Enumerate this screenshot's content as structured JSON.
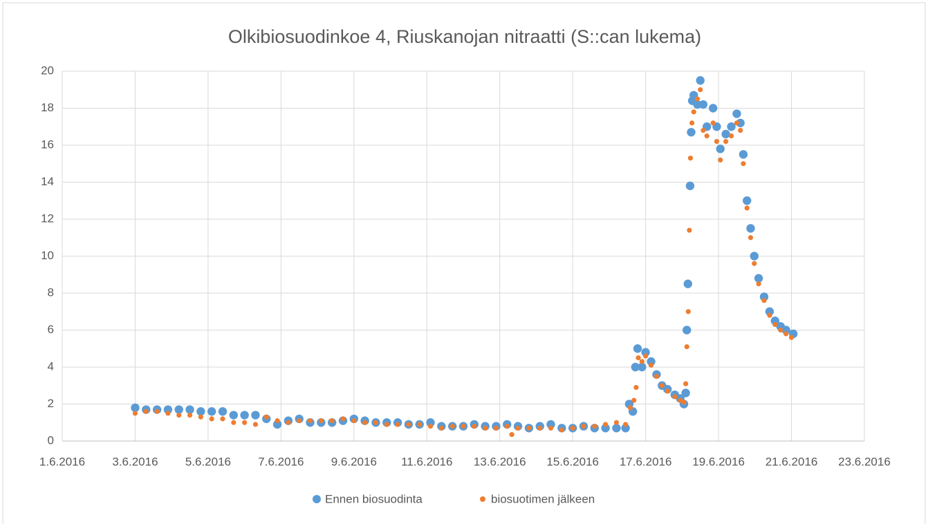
{
  "chart_data": {
    "type": "scatter",
    "title": "Olkibiosuodinkoe  4, Riuskanojan nitraatti (S::can lukema)",
    "xlim": [
      42522,
      42544
    ],
    "xticks": [
      {
        "value": 42522,
        "label": "1.6.2016"
      },
      {
        "value": 42524,
        "label": "3.6.2016"
      },
      {
        "value": 42526,
        "label": "5.6.2016"
      },
      {
        "value": 42528,
        "label": "7.6.2016"
      },
      {
        "value": 42530,
        "label": "9.6.2016"
      },
      {
        "value": 42532,
        "label": "11.6.2016"
      },
      {
        "value": 42534,
        "label": "13.6.2016"
      },
      {
        "value": 42536,
        "label": "15.6.2016"
      },
      {
        "value": 42538,
        "label": "17.6.2016"
      },
      {
        "value": 42540,
        "label": "19.6.2016"
      },
      {
        "value": 42542,
        "label": "21.6.2016"
      },
      {
        "value": 42544,
        "label": "23.6.2016"
      }
    ],
    "ylim": [
      0,
      20
    ],
    "yticks": [
      0,
      2,
      4,
      6,
      8,
      10,
      12,
      14,
      16,
      18,
      20
    ],
    "grid": true,
    "legend": "bottom",
    "series": [
      {
        "name": "Ennen biosuodinta",
        "color": "#5b9bd5",
        "x": [
          42524.0,
          42524.3,
          42524.6,
          42524.9,
          42525.2,
          42525.5,
          42525.8,
          42526.1,
          42526.4,
          42526.7,
          42527.0,
          42527.3,
          42527.6,
          42527.9,
          42528.2,
          42528.5,
          42528.8,
          42529.1,
          42529.4,
          42529.7,
          42530.0,
          42530.3,
          42530.6,
          42530.9,
          42531.2,
          42531.5,
          42531.8,
          42532.1,
          42532.4,
          42532.7,
          42533.0,
          42533.3,
          42533.6,
          42533.9,
          42534.2,
          42534.5,
          42534.8,
          42535.1,
          42535.4,
          42535.7,
          42536.0,
          42536.3,
          42536.6,
          42536.9,
          42537.2,
          42537.45,
          42537.55,
          42537.65,
          42537.72,
          42537.78,
          42537.9,
          42538.0,
          42538.15,
          42538.3,
          42538.45,
          42538.6,
          42538.8,
          42538.95,
          42539.05,
          42539.1,
          42539.13,
          42539.16,
          42539.22,
          42539.25,
          42539.28,
          42539.32,
          42539.42,
          42539.5,
          42539.58,
          42539.68,
          42539.85,
          42539.95,
          42540.05,
          42540.2,
          42540.35,
          42540.5,
          42540.6,
          42540.68,
          42540.78,
          42540.88,
          42540.98,
          42541.1,
          42541.25,
          42541.4,
          42541.55,
          42541.7,
          42541.85,
          42542.05
        ],
        "values": [
          1.8,
          1.7,
          1.7,
          1.7,
          1.7,
          1.7,
          1.6,
          1.6,
          1.6,
          1.4,
          1.4,
          1.4,
          1.2,
          0.9,
          1.1,
          1.2,
          1.0,
          1.0,
          1.0,
          1.1,
          1.2,
          1.1,
          1.0,
          1.0,
          1.0,
          0.9,
          0.9,
          1.0,
          0.8,
          0.8,
          0.8,
          0.9,
          0.8,
          0.8,
          0.9,
          0.8,
          0.7,
          0.8,
          0.9,
          0.7,
          0.7,
          0.8,
          0.7,
          0.7,
          0.7,
          0.7,
          2.0,
          1.6,
          4.0,
          5.0,
          4.0,
          4.8,
          4.3,
          3.6,
          3.0,
          2.8,
          2.5,
          2.3,
          2.0,
          2.6,
          6.0,
          8.5,
          13.8,
          16.7,
          18.4,
          18.7,
          18.2,
          19.5,
          18.2,
          17.0,
          18.0,
          17.0,
          15.8,
          16.6,
          17.0,
          17.7,
          17.2,
          15.5,
          13.0,
          11.5,
          10.0,
          8.8,
          7.8,
          7.0,
          6.5,
          6.2,
          6.0,
          5.8
        ]
      },
      {
        "name": "biosuotimen jälkeen",
        "color": "#ed7d31",
        "x": [
          42524.0,
          42524.3,
          42524.6,
          42524.9,
          42525.2,
          42525.5,
          42525.8,
          42526.1,
          42526.4,
          42526.7,
          42527.0,
          42527.3,
          42527.6,
          42527.9,
          42528.2,
          42528.5,
          42528.8,
          42529.1,
          42529.4,
          42529.7,
          42530.0,
          42530.3,
          42530.6,
          42530.9,
          42531.2,
          42531.5,
          42531.8,
          42532.1,
          42532.4,
          42532.7,
          42533.0,
          42533.3,
          42533.6,
          42533.9,
          42534.2,
          42534.33,
          42534.5,
          42534.8,
          42535.1,
          42535.4,
          42535.7,
          42536.0,
          42536.3,
          42536.6,
          42536.9,
          42537.2,
          42537.45,
          42537.58,
          42537.68,
          42537.74,
          42537.8,
          42537.9,
          42538.0,
          42538.15,
          42538.3,
          42538.45,
          42538.6,
          42538.8,
          42538.95,
          42539.05,
          42539.1,
          42539.13,
          42539.17,
          42539.2,
          42539.23,
          42539.27,
          42539.32,
          42539.42,
          42539.5,
          42539.58,
          42539.68,
          42539.85,
          42539.95,
          42540.05,
          42540.2,
          42540.35,
          42540.5,
          42540.6,
          42540.68,
          42540.78,
          42540.88,
          42540.98,
          42541.1,
          42541.25,
          42541.4,
          42541.55,
          42541.7,
          42541.85,
          42542.0
        ],
        "values": [
          1.5,
          1.6,
          1.6,
          1.5,
          1.4,
          1.4,
          1.3,
          1.2,
          1.2,
          1.0,
          1.0,
          0.9,
          1.3,
          1.1,
          1.0,
          1.1,
          1.1,
          1.1,
          1.1,
          1.2,
          1.1,
          1.0,
          1.0,
          0.9,
          0.9,
          0.9,
          0.9,
          0.8,
          0.7,
          0.8,
          0.8,
          0.8,
          0.7,
          0.7,
          0.8,
          0.35,
          0.7,
          0.7,
          0.7,
          0.7,
          0.6,
          0.7,
          0.8,
          0.8,
          0.9,
          1.0,
          0.9,
          1.8,
          2.2,
          2.9,
          4.5,
          4.3,
          4.6,
          4.1,
          3.5,
          3.0,
          2.7,
          2.4,
          2.2,
          2.1,
          3.1,
          5.1,
          7.0,
          11.4,
          15.3,
          17.2,
          17.8,
          18.5,
          19.0,
          16.8,
          16.5,
          17.2,
          16.2,
          15.2,
          16.2,
          16.5,
          17.2,
          16.8,
          15.0,
          12.6,
          11.0,
          9.6,
          8.5,
          7.6,
          6.8,
          6.3,
          6.0,
          5.8,
          5.6
        ]
      }
    ]
  }
}
